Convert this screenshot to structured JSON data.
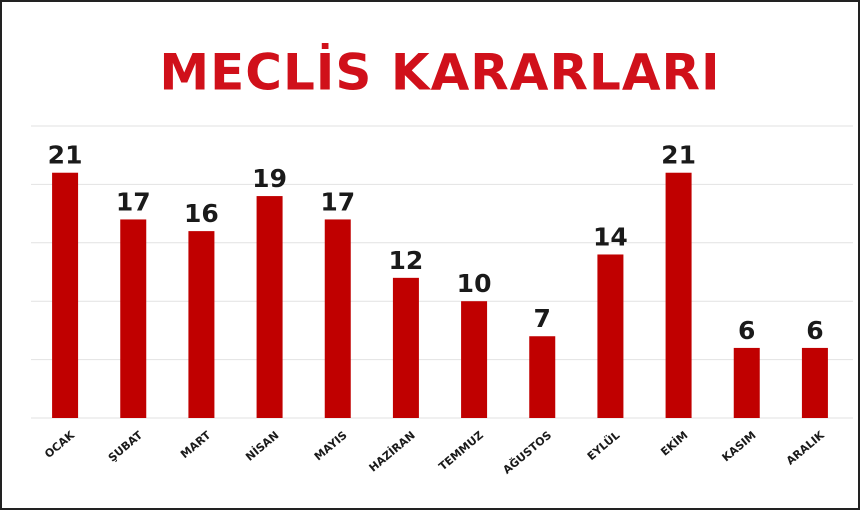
{
  "chart_data": {
    "type": "bar",
    "title": "MECLİS KARARLARI",
    "categories": [
      "OCAK",
      "ŞUBAT",
      "MART",
      "NİSAN",
      "MAYIS",
      "HAZİRAN",
      "TEMMUZ",
      "AĞUSTOS",
      "EYLÜL",
      "EKİM",
      "KASIM",
      "ARALIK"
    ],
    "values": [
      21,
      17,
      16,
      19,
      17,
      12,
      10,
      7,
      14,
      21,
      6,
      6
    ],
    "color": "#c00000",
    "ylim": [
      0,
      25
    ],
    "yticks": [
      0,
      5,
      10,
      15,
      20,
      25
    ],
    "grid": true
  }
}
